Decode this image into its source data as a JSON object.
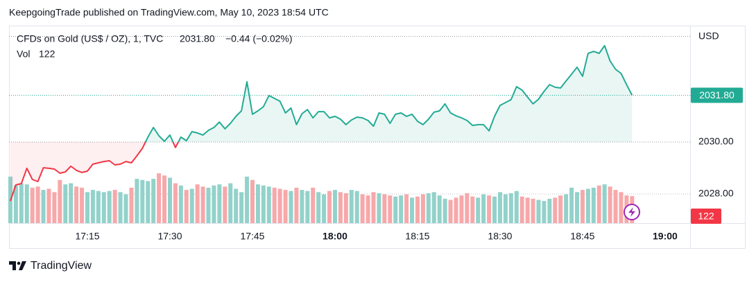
{
  "header": {
    "title": "KeepgoingTrade published on TradingView.com, May 10, 2023 18:54 UTC"
  },
  "footer": {
    "brand": "TradingView"
  },
  "chart_data": {
    "type": "baseline",
    "legend": {
      "last": "2031.80",
      "change": "−0.44 (−0.02%)"
    },
    "currency": "USD",
    "x": [
      "17:01",
      "17:02",
      "17:03",
      "17:04",
      "17:05",
      "17:06",
      "17:07",
      "17:08",
      "17:09",
      "17:10",
      "17:11",
      "17:12",
      "17:13",
      "17:14",
      "17:15",
      "17:16",
      "17:17",
      "17:18",
      "17:19",
      "17:20",
      "17:21",
      "17:22",
      "17:23",
      "17:24",
      "17:25",
      "17:26",
      "17:27",
      "17:28",
      "17:29",
      "17:30",
      "17:31",
      "17:32",
      "17:33",
      "17:34",
      "17:35",
      "17:36",
      "17:37",
      "17:38",
      "17:39",
      "17:40",
      "17:41",
      "17:42",
      "17:43",
      "17:44",
      "17:45",
      "17:46",
      "17:47",
      "17:48",
      "17:49",
      "17:50",
      "17:51",
      "17:52",
      "17:53",
      "17:54",
      "17:55",
      "17:56",
      "17:57",
      "17:58",
      "17:59",
      "18:00",
      "18:01",
      "18:02",
      "18:03",
      "18:04",
      "18:05",
      "18:06",
      "18:07",
      "18:08",
      "18:09",
      "18:10",
      "18:11",
      "18:12",
      "18:13",
      "18:14",
      "18:15",
      "18:16",
      "18:17",
      "18:18",
      "18:19",
      "18:20",
      "18:21",
      "18:22",
      "18:23",
      "18:24",
      "18:25",
      "18:26",
      "18:27",
      "18:28",
      "18:29",
      "18:30",
      "18:31",
      "18:32",
      "18:33",
      "18:34",
      "18:35",
      "18:36",
      "18:37",
      "18:38",
      "18:39",
      "18:40",
      "18:41",
      "18:42",
      "18:43",
      "18:44",
      "18:45",
      "18:46",
      "18:47",
      "18:48",
      "18:49",
      "18:50",
      "18:51",
      "18:52",
      "18:53",
      "18:54"
    ],
    "series": [
      {
        "name": "CFDs on Gold (US$ / OZ), 1, TVC",
        "values": [
          2027.73,
          2028.35,
          2028.4,
          2028.99,
          2028.56,
          2028.48,
          2029.01,
          2028.99,
          2028.96,
          2028.8,
          2028.85,
          2029.07,
          2028.91,
          2028.83,
          2028.88,
          2029.15,
          2029.2,
          2029.25,
          2029.28,
          2029.12,
          2029.15,
          2029.25,
          2029.2,
          2029.47,
          2029.76,
          2030.19,
          2030.56,
          2030.24,
          2030.03,
          2030.27,
          2029.79,
          2030.19,
          2030.05,
          2030.4,
          2030.35,
          2030.27,
          2030.45,
          2030.56,
          2030.77,
          2030.51,
          2030.72,
          2030.99,
          2031.2,
          2032.32,
          2031.07,
          2031.2,
          2031.36,
          2031.79,
          2031.68,
          2031.57,
          2031.12,
          2031.31,
          2030.67,
          2031.09,
          2031.25,
          2030.93,
          2031.17,
          2031.17,
          2030.93,
          2030.99,
          2030.88,
          2030.67,
          2030.85,
          2030.96,
          2030.93,
          2030.83,
          2030.61,
          2031.12,
          2031.07,
          2030.72,
          2031.07,
          2031.12,
          2030.99,
          2031.07,
          2030.8,
          2030.67,
          2030.88,
          2031.15,
          2031.2,
          2031.47,
          2031.12,
          2031.01,
          2030.93,
          2030.83,
          2030.64,
          2030.67,
          2030.67,
          2030.43,
          2030.99,
          2031.41,
          2031.52,
          2031.63,
          2032.13,
          2032.0,
          2031.73,
          2031.47,
          2031.65,
          2031.95,
          2032.21,
          2032.11,
          2032.08,
          2032.35,
          2032.61,
          2032.88,
          2032.53,
          2033.41,
          2033.49,
          2033.41,
          2033.71,
          2033.12,
          2032.8,
          2032.64,
          2032.21,
          2031.8
        ]
      },
      {
        "name": "Vol",
        "axis": "volume",
        "values": [
          210,
          170,
          180,
          175,
          160,
          165,
          150,
          155,
          140,
          195,
          175,
          180,
          165,
          160,
          140,
          150,
          145,
          140,
          145,
          150,
          140,
          130,
          160,
          200,
          195,
          190,
          200,
          225,
          215,
          205,
          180,
          170,
          150,
          155,
          175,
          165,
          160,
          170,
          175,
          165,
          180,
          155,
          140,
          210,
          195,
          175,
          170,
          165,
          160,
          155,
          150,
          145,
          160,
          150,
          145,
          160,
          140,
          130,
          145,
          150,
          140,
          135,
          150,
          145,
          130,
          125,
          140,
          135,
          130,
          125,
          120,
          125,
          130,
          115,
          120,
          130,
          135,
          140,
          125,
          110,
          105,
          115,
          125,
          135,
          120,
          115,
          130,
          125,
          120,
          140,
          130,
          135,
          145,
          120,
          115,
          110,
          105,
          100,
          110,
          115,
          125,
          130,
          160,
          140,
          150,
          155,
          160,
          170,
          175,
          165,
          150,
          140,
          125,
          122
        ]
      }
    ],
    "baseline": 2030,
    "colors": {
      "up": "#22ab94",
      "down": "#f23645",
      "up_volume": "#92d2ca",
      "down_volume": "#f7a8aa"
    },
    "ylim": [
      2026.88,
      2034.48
    ],
    "yticks": [
      {
        "value": 2030,
        "label": "2030.00"
      },
      {
        "value": 2028,
        "label": "2028.00"
      }
    ],
    "vlim": [
      0,
      360
    ],
    "xlim": [
      "17:00",
      "19:05"
    ],
    "xticks": [
      "17:15",
      "17:30",
      "17:45",
      "18:00",
      "18:15",
      "18:30",
      "18:45",
      "19:00"
    ]
  }
}
